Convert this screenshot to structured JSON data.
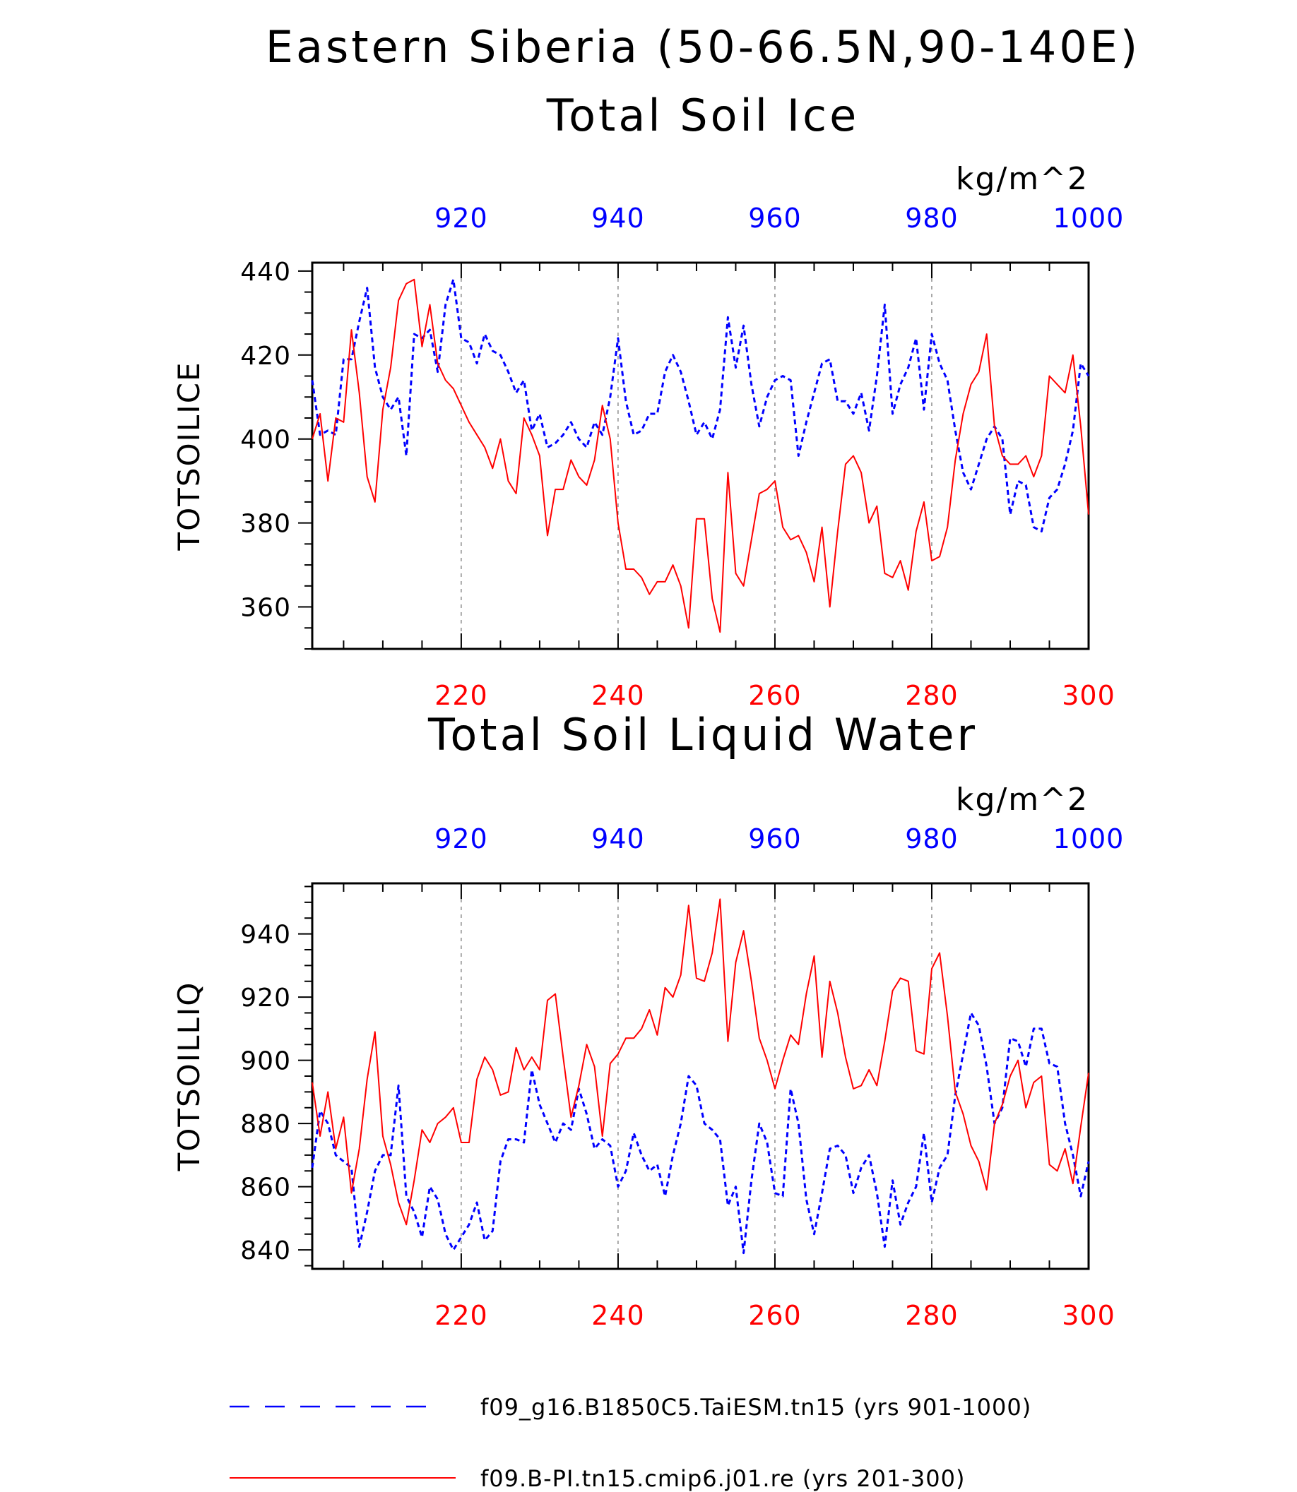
{
  "figure": {
    "title_line1": "Eastern Siberia (50-66.5N,90-140E)"
  },
  "colors": {
    "blue": "#0000ff",
    "red": "#ff0000",
    "axis": "#000000",
    "grid": "#555555"
  },
  "legend": [
    {
      "label": "f09_g16.B1850C5.TaiESM.tn15 (yrs 901-1000)",
      "color": "#0000ff",
      "style": "dashed"
    },
    {
      "label": "f09.B-PI.tn15.cmip6.j01.re (yrs 201-300)",
      "color": "#ff0000",
      "style": "solid"
    }
  ],
  "chart_data": [
    {
      "type": "line",
      "title": "Total Soil Ice",
      "ylabel": "TOTSOILICE",
      "units": "kg/m^2",
      "ylim": [
        350,
        442
      ],
      "yticks": [
        360,
        380,
        400,
        420,
        440
      ],
      "bottom_axis": {
        "range": [
          201,
          300
        ],
        "ticks": [
          220,
          240,
          260,
          280,
          300
        ],
        "color": "#ff0000"
      },
      "top_axis": {
        "range": [
          901,
          1000
        ],
        "ticks": [
          920,
          940,
          960,
          980,
          1000
        ],
        "color": "#0000ff"
      },
      "grid_x": [
        220,
        240,
        260,
        280
      ],
      "series": [
        {
          "axis": "top",
          "color": "#0000ff",
          "style": "dashed",
          "x": [
            901,
            902,
            903,
            904,
            905,
            906,
            907,
            908,
            909,
            910,
            911,
            912,
            913,
            914,
            915,
            916,
            917,
            918,
            919,
            920,
            921,
            922,
            923,
            924,
            925,
            926,
            927,
            928,
            929,
            930,
            931,
            932,
            933,
            934,
            935,
            936,
            937,
            938,
            939,
            940,
            941,
            942,
            943,
            944,
            945,
            946,
            947,
            948,
            949,
            950,
            951,
            952,
            953,
            954,
            955,
            956,
            957,
            958,
            959,
            960,
            961,
            962,
            963,
            964,
            965,
            966,
            967,
            968,
            969,
            970,
            971,
            972,
            973,
            974,
            975,
            976,
            977,
            978,
            979,
            980,
            981,
            982,
            983,
            984,
            985,
            986,
            987,
            988,
            989,
            990,
            991,
            992,
            993,
            994,
            995,
            996,
            997,
            998,
            999,
            1000
          ],
          "y": [
            414,
            401,
            402,
            401,
            419,
            419,
            428,
            436,
            417,
            410,
            407,
            410,
            396,
            425,
            424,
            426,
            416,
            432,
            438,
            424,
            423,
            418,
            425,
            421,
            420,
            416,
            411,
            414,
            402,
            406,
            398,
            399,
            401,
            404,
            400,
            398,
            404,
            401,
            410,
            424,
            409,
            401,
            402,
            406,
            406,
            416,
            420,
            416,
            409,
            401,
            404,
            400,
            407,
            429,
            417,
            427,
            413,
            403,
            410,
            414,
            415,
            414,
            396,
            404,
            411,
            418,
            419,
            409,
            409,
            406,
            411,
            402,
            415,
            432,
            406,
            413,
            417,
            424,
            407,
            425,
            418,
            414,
            402,
            392,
            388,
            394,
            400,
            403,
            400,
            382,
            390,
            389,
            379,
            378,
            386,
            388,
            394,
            402,
            418,
            415
          ]
        },
        {
          "axis": "bottom",
          "color": "#ff0000",
          "style": "solid",
          "x": [
            201,
            202,
            203,
            204,
            205,
            206,
            207,
            208,
            209,
            210,
            211,
            212,
            213,
            214,
            215,
            216,
            217,
            218,
            219,
            220,
            221,
            222,
            223,
            224,
            225,
            226,
            227,
            228,
            229,
            230,
            231,
            232,
            233,
            234,
            235,
            236,
            237,
            238,
            239,
            240,
            241,
            242,
            243,
            244,
            245,
            246,
            247,
            248,
            249,
            250,
            251,
            252,
            253,
            254,
            255,
            256,
            257,
            258,
            259,
            260,
            261,
            262,
            263,
            264,
            265,
            266,
            267,
            268,
            269,
            270,
            271,
            272,
            273,
            274,
            275,
            276,
            277,
            278,
            279,
            280,
            281,
            282,
            283,
            284,
            285,
            286,
            287,
            288,
            289,
            290,
            291,
            292,
            293,
            294,
            295,
            296,
            297,
            298,
            299,
            300
          ],
          "y": [
            400,
            406,
            390,
            405,
            404,
            426,
            411,
            391,
            385,
            407,
            417,
            433,
            437,
            438,
            422,
            432,
            418,
            414,
            412,
            408,
            404,
            401,
            398,
            393,
            400,
            390,
            387,
            405,
            401,
            396,
            377,
            388,
            388,
            395,
            391,
            389,
            395,
            408,
            400,
            380,
            369,
            369,
            367,
            363,
            366,
            366,
            370,
            365,
            355,
            381,
            381,
            362,
            354,
            392,
            368,
            365,
            376,
            387,
            388,
            390,
            379,
            376,
            377,
            373,
            366,
            379,
            360,
            378,
            394,
            396,
            392,
            380,
            384,
            368,
            367,
            371,
            364,
            378,
            385,
            371,
            372,
            379,
            395,
            406,
            413,
            416,
            425,
            403,
            396,
            394,
            394,
            396,
            391,
            396,
            415,
            413,
            411,
            420,
            403,
            382
          ]
        }
      ]
    },
    {
      "type": "line",
      "title": "Total Soil Liquid Water",
      "ylabel": "TOTSOILLIQ",
      "units": "kg/m^2",
      "ylim": [
        834,
        956
      ],
      "yticks": [
        840,
        860,
        880,
        900,
        920,
        940
      ],
      "bottom_axis": {
        "range": [
          201,
          300
        ],
        "ticks": [
          220,
          240,
          260,
          280,
          300
        ],
        "color": "#ff0000"
      },
      "top_axis": {
        "range": [
          901,
          1000
        ],
        "ticks": [
          920,
          940,
          960,
          980,
          1000
        ],
        "color": "#0000ff"
      },
      "grid_x": [
        220,
        240,
        260,
        280
      ],
      "series": [
        {
          "axis": "top",
          "color": "#0000ff",
          "style": "dashed",
          "x": [
            901,
            902,
            903,
            904,
            905,
            906,
            907,
            908,
            909,
            910,
            911,
            912,
            913,
            914,
            915,
            916,
            917,
            918,
            919,
            920,
            921,
            922,
            923,
            924,
            925,
            926,
            927,
            928,
            929,
            930,
            931,
            932,
            933,
            934,
            935,
            936,
            937,
            938,
            939,
            940,
            941,
            942,
            943,
            944,
            945,
            946,
            947,
            948,
            949,
            950,
            951,
            952,
            953,
            954,
            955,
            956,
            957,
            958,
            959,
            960,
            961,
            962,
            963,
            964,
            965,
            966,
            967,
            968,
            969,
            970,
            971,
            972,
            973,
            974,
            975,
            976,
            977,
            978,
            979,
            980,
            981,
            982,
            983,
            984,
            985,
            986,
            987,
            988,
            989,
            990,
            991,
            992,
            993,
            994,
            995,
            996,
            997,
            998,
            999,
            1000
          ],
          "y": [
            866,
            884,
            880,
            870,
            868,
            866,
            841,
            852,
            865,
            870,
            870,
            892,
            857,
            852,
            844,
            860,
            856,
            845,
            840,
            844,
            848,
            855,
            843,
            846,
            868,
            875,
            875,
            874,
            897,
            886,
            880,
            874,
            880,
            878,
            891,
            883,
            872,
            875,
            873,
            860,
            865,
            877,
            870,
            865,
            867,
            857,
            870,
            880,
            895,
            892,
            880,
            878,
            875,
            854,
            860,
            839,
            862,
            880,
            874,
            858,
            857,
            891,
            880,
            856,
            845,
            858,
            872,
            873,
            870,
            858,
            866,
            870,
            858,
            841,
            862,
            848,
            855,
            860,
            877,
            855,
            866,
            870,
            889,
            902,
            915,
            911,
            898,
            880,
            885,
            907,
            906,
            898,
            910,
            910,
            899,
            898,
            880,
            870,
            857,
            868
          ]
        },
        {
          "axis": "bottom",
          "color": "#ff0000",
          "style": "solid",
          "x": [
            201,
            202,
            203,
            204,
            205,
            206,
            207,
            208,
            209,
            210,
            211,
            212,
            213,
            214,
            215,
            216,
            217,
            218,
            219,
            220,
            221,
            222,
            223,
            224,
            225,
            226,
            227,
            228,
            229,
            230,
            231,
            232,
            233,
            234,
            235,
            236,
            237,
            238,
            239,
            240,
            241,
            242,
            243,
            244,
            245,
            246,
            247,
            248,
            249,
            250,
            251,
            252,
            253,
            254,
            255,
            256,
            257,
            258,
            259,
            260,
            261,
            262,
            263,
            264,
            265,
            266,
            267,
            268,
            269,
            270,
            271,
            272,
            273,
            274,
            275,
            276,
            277,
            278,
            279,
            280,
            281,
            282,
            283,
            284,
            285,
            286,
            287,
            288,
            289,
            290,
            291,
            292,
            293,
            294,
            295,
            296,
            297,
            298,
            299,
            300
          ],
          "y": [
            893,
            876,
            890,
            872,
            882,
            858,
            872,
            894,
            909,
            876,
            867,
            855,
            848,
            862,
            878,
            874,
            880,
            882,
            885,
            874,
            874,
            894,
            901,
            897,
            889,
            890,
            904,
            897,
            901,
            897,
            919,
            921,
            901,
            882,
            892,
            905,
            898,
            876,
            899,
            902,
            907,
            907,
            910,
            916,
            908,
            923,
            920,
            927,
            949,
            926,
            925,
            934,
            951,
            906,
            931,
            941,
            925,
            907,
            900,
            891,
            900,
            908,
            905,
            921,
            933,
            901,
            925,
            915,
            901,
            891,
            892,
            897,
            892,
            906,
            922,
            926,
            925,
            903,
            902,
            929,
            934,
            914,
            890,
            883,
            873,
            868,
            859,
            880,
            886,
            895,
            900,
            885,
            893,
            895,
            867,
            865,
            872,
            861,
            879,
            896
          ]
        }
      ]
    }
  ]
}
